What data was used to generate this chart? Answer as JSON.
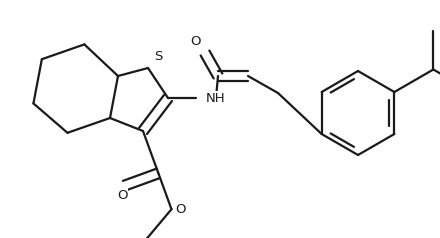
{
  "bg_color": "#ffffff",
  "line_color": "#1a1a1a",
  "line_width": 1.6,
  "font_size": 9.5,
  "figsize": [
    4.4,
    2.38
  ],
  "dpi": 100,
  "xlim": [
    0,
    440
  ],
  "ylim": [
    0,
    238
  ]
}
